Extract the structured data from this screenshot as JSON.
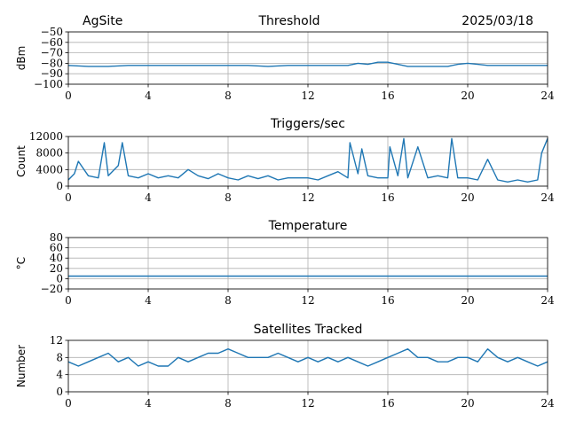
{
  "header": {
    "site": "AgSite",
    "title": "Threshold",
    "date": "2025/03/18"
  },
  "colors": {
    "series": "#1f77b4",
    "grid": "#b0b0b0"
  },
  "chart_data": [
    {
      "type": "line",
      "title": "",
      "ylabel": "dBm",
      "xlim": [
        0,
        24
      ],
      "ylim": [
        -100,
        -50
      ],
      "xticks": [
        0,
        4,
        8,
        12,
        16,
        20,
        24
      ],
      "yticks": [
        -100,
        -90,
        -80,
        -70,
        -60,
        -50
      ],
      "ytick_labels": [
        "−100",
        "−90",
        "−80",
        "−70",
        "−60",
        "−50"
      ],
      "grid": true,
      "series": [
        {
          "x": [
            0,
            1,
            2,
            3,
            4,
            5,
            6,
            7,
            8,
            9,
            10,
            11,
            12,
            13,
            14,
            14.5,
            15,
            15.5,
            16,
            16.5,
            17,
            18,
            19,
            19.5,
            20,
            20.5,
            21,
            22,
            23,
            24
          ],
          "values": [
            -82,
            -83,
            -83,
            -82,
            -82,
            -82,
            -82,
            -82,
            -82,
            -82,
            -83,
            -82,
            -82,
            -82,
            -82,
            -80,
            -81,
            -79,
            -79,
            -81,
            -83,
            -83,
            -83,
            -81,
            -80,
            -81,
            -82,
            -82,
            -82,
            -82
          ]
        }
      ]
    },
    {
      "type": "line",
      "title": "Triggers/sec",
      "ylabel": "Count",
      "xlim": [
        0,
        24
      ],
      "ylim": [
        0,
        12000
      ],
      "xticks": [
        0,
        4,
        8,
        12,
        16,
        20,
        24
      ],
      "yticks": [
        0,
        4000,
        8000,
        12000
      ],
      "ytick_labels": [
        "0",
        "4000",
        "8000",
        "12000"
      ],
      "grid": true,
      "series": [
        {
          "x": [
            0,
            0.3,
            0.5,
            1,
            1.5,
            1.8,
            2,
            2.5,
            2.7,
            3,
            3.5,
            4,
            4.5,
            5,
            5.5,
            6,
            6.5,
            7,
            7.5,
            8,
            8.5,
            9,
            9.5,
            10,
            10.5,
            11,
            11.5,
            12,
            12.5,
            13,
            13.5,
            14,
            14.1,
            14.5,
            14.7,
            15,
            15.5,
            16,
            16.1,
            16.5,
            16.8,
            17,
            17.5,
            18,
            18.5,
            19,
            19.2,
            19.5,
            20,
            20.5,
            21,
            21.5,
            22,
            22.5,
            23,
            23.5,
            23.7,
            24
          ],
          "values": [
            1500,
            3000,
            6000,
            2500,
            2000,
            10500,
            2500,
            5000,
            10500,
            2500,
            2000,
            3000,
            2000,
            2500,
            2000,
            4000,
            2500,
            1800,
            3000,
            2000,
            1500,
            2500,
            1800,
            2500,
            1500,
            2000,
            2000,
            2000,
            1500,
            2500,
            3500,
            2000,
            10500,
            3000,
            9000,
            2500,
            2000,
            2000,
            9500,
            2500,
            11500,
            2000,
            9500,
            2000,
            2500,
            2000,
            11500,
            2000,
            2000,
            1500,
            6500,
            1500,
            1000,
            1500,
            1000,
            1500,
            8000,
            11500
          ]
        }
      ]
    },
    {
      "type": "line",
      "title": "Temperature",
      "ylabel": "°C",
      "xlim": [
        0,
        24
      ],
      "ylim": [
        -20,
        80
      ],
      "xticks": [
        0,
        4,
        8,
        12,
        16,
        20,
        24
      ],
      "yticks": [
        -20,
        0,
        20,
        40,
        60,
        80
      ],
      "ytick_labels": [
        "−20",
        "0",
        "20",
        "40",
        "60",
        "80"
      ],
      "grid": true,
      "series": [
        {
          "x": [
            0,
            24
          ],
          "values": [
            5,
            5
          ]
        }
      ]
    },
    {
      "type": "line",
      "title": "Satellites Tracked",
      "ylabel": "Number",
      "xlim": [
        0,
        24
      ],
      "ylim": [
        0,
        12
      ],
      "xticks": [
        0,
        4,
        8,
        12,
        16,
        20,
        24
      ],
      "yticks": [
        0,
        4,
        8,
        12
      ],
      "ytick_labels": [
        "0",
        "4",
        "8",
        "12"
      ],
      "grid": true,
      "series": [
        {
          "x": [
            0,
            0.5,
            1,
            1.5,
            2,
            2.5,
            3,
            3.5,
            4,
            4.5,
            5,
            5.5,
            6,
            6.5,
            7,
            7.5,
            8,
            8.5,
            9,
            9.5,
            10,
            10.5,
            11,
            11.5,
            12,
            12.5,
            13,
            13.5,
            14,
            14.5,
            15,
            15.5,
            16,
            16.5,
            17,
            17.5,
            18,
            18.5,
            19,
            19.5,
            20,
            20.5,
            21,
            21.5,
            22,
            22.5,
            23,
            23.5,
            24
          ],
          "values": [
            7,
            6,
            7,
            8,
            9,
            7,
            8,
            6,
            7,
            6,
            6,
            8,
            7,
            8,
            9,
            9,
            10,
            9,
            8,
            8,
            8,
            9,
            8,
            7,
            8,
            7,
            8,
            7,
            8,
            7,
            6,
            7,
            8,
            9,
            10,
            8,
            8,
            7,
            7,
            8,
            8,
            7,
            10,
            8,
            7,
            8,
            7,
            6,
            7
          ]
        }
      ]
    }
  ]
}
